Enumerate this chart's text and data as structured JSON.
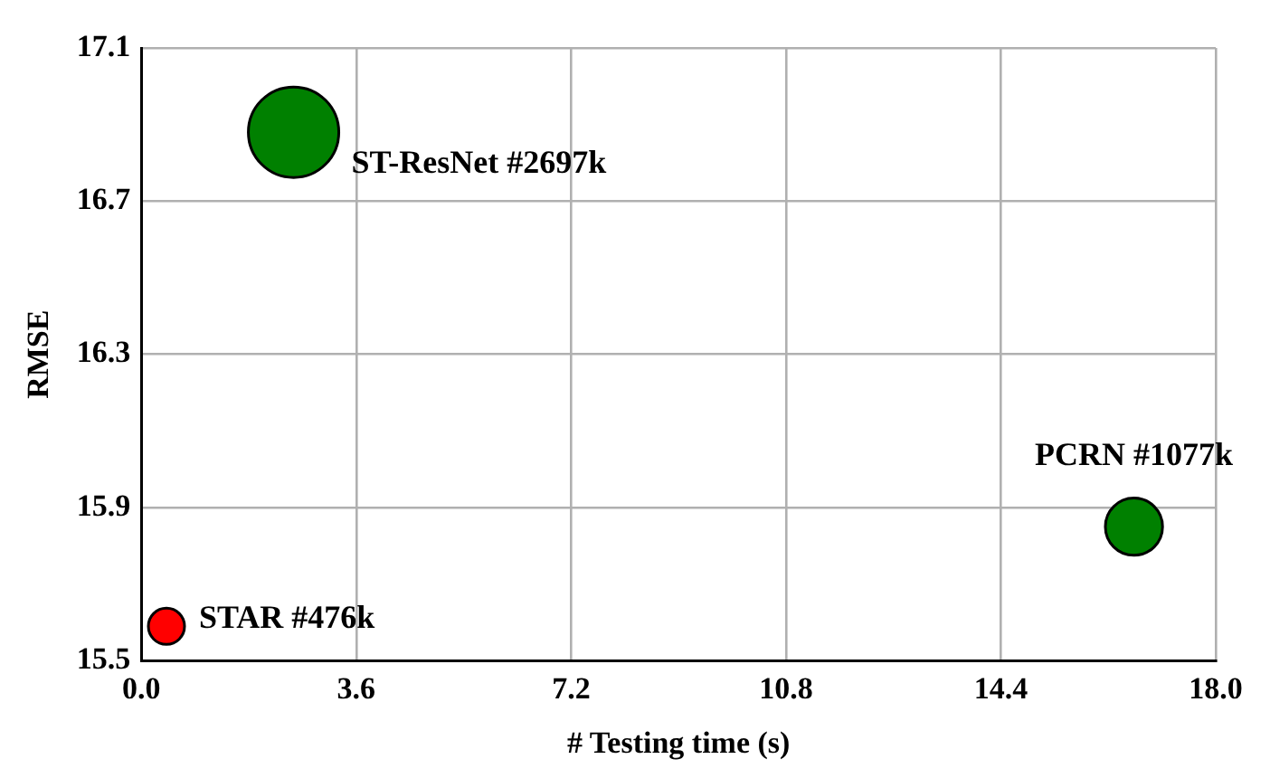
{
  "chart_data": {
    "type": "bubble",
    "xlabel": "# Testing time (s)",
    "ylabel": "RMSE",
    "x": [
      0.42,
      2.55,
      16.63
    ],
    "values": [
      15.59,
      16.88,
      15.85
    ],
    "sizes": [
      0.16,
      1,
      0.4
    ],
    "colors": [
      "#ff0000",
      "#008000",
      "#008000"
    ],
    "xlim": [
      0,
      18
    ],
    "xticks": [
      {
        "value": 0,
        "label": "0.0"
      },
      3.6,
      7.2,
      10.8,
      14.4,
      {
        "value": 18,
        "label": "18.0"
      }
    ],
    "ylim": [
      15.5,
      17.1
    ],
    "yticks": [
      15.5,
      15.9,
      16.3,
      16.7,
      17.1
    ],
    "grid": true,
    "legend": false,
    "annotations": [
      {
        "text": "STAR #476k",
        "x": 0.42,
        "y": 15.59
      },
      {
        "text": "ST-ResNet #2697k",
        "x": 2.55,
        "y": 16.88
      },
      {
        "text": "PCRN #1077k",
        "x": 16.63,
        "y": 15.85
      }
    ]
  }
}
